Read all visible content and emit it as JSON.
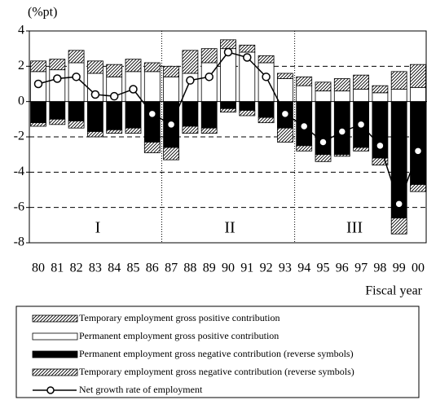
{
  "chart_data": {
    "type": "bar",
    "y_label": "(%pt)",
    "x_label": "Fiscal year",
    "categories": [
      "80",
      "81",
      "82",
      "83",
      "84",
      "85",
      "86",
      "87",
      "88",
      "89",
      "90",
      "91",
      "92",
      "93",
      "94",
      "95",
      "96",
      "97",
      "98",
      "99",
      "00"
    ],
    "periods": [
      "I",
      "II",
      "III"
    ],
    "ylim": [
      -8,
      4
    ],
    "yticks": [
      -8,
      -6,
      -4,
      -2,
      0,
      2,
      4
    ],
    "grid": true,
    "series": [
      {
        "name": "Temporary employment gross positive contribution",
        "color": "#ffffff",
        "hatched": true,
        "values": [
          0.6,
          0.6,
          0.7,
          0.7,
          0.7,
          0.7,
          0.5,
          0.6,
          1.3,
          0.8,
          0.5,
          0.4,
          0.4,
          0.3,
          0.5,
          0.5,
          0.7,
          0.8,
          0.4,
          1.0,
          1.3
        ]
      },
      {
        "name": "Permanent employment gross positive contribution",
        "color": "#ffffff",
        "hatched": false,
        "values": [
          1.7,
          1.8,
          2.2,
          1.6,
          1.4,
          1.7,
          1.7,
          1.4,
          1.6,
          2.2,
          3.0,
          2.8,
          2.2,
          1.3,
          0.9,
          0.6,
          0.6,
          0.7,
          0.5,
          0.7,
          0.8
        ]
      },
      {
        "name": "Permanent employment gross negative contribution (reverse symbols)",
        "color": "#000000",
        "hatched": false,
        "values": [
          -1.2,
          -1.0,
          -1.1,
          -1.7,
          -1.6,
          -1.5,
          -2.3,
          -2.6,
          -1.4,
          -1.5,
          -0.4,
          -0.5,
          -0.9,
          -1.5,
          -2.5,
          -3.0,
          -3.0,
          -2.6,
          -3.2,
          -6.6,
          -4.7
        ]
      },
      {
        "name": "Temporary employment gross negative contribution (reverse symbols)",
        "color": "#ffffff",
        "hatched": true,
        "values": [
          -0.2,
          -0.3,
          -0.4,
          -0.3,
          -0.2,
          -0.3,
          -0.6,
          -0.7,
          -0.4,
          -0.3,
          -0.2,
          -0.3,
          -0.3,
          -0.8,
          -0.3,
          -0.4,
          -0.1,
          -0.2,
          -0.4,
          -0.9,
          -0.4
        ]
      },
      {
        "name": "Net growth rate of employment",
        "color": "#000000",
        "type": "line",
        "values": [
          1.0,
          1.3,
          1.4,
          0.4,
          0.3,
          0.7,
          -0.7,
          -1.3,
          1.2,
          1.4,
          2.8,
          2.5,
          1.4,
          -0.7,
          -1.4,
          -2.3,
          -1.7,
          -1.3,
          -2.5,
          -5.8,
          -2.8
        ]
      }
    ]
  }
}
